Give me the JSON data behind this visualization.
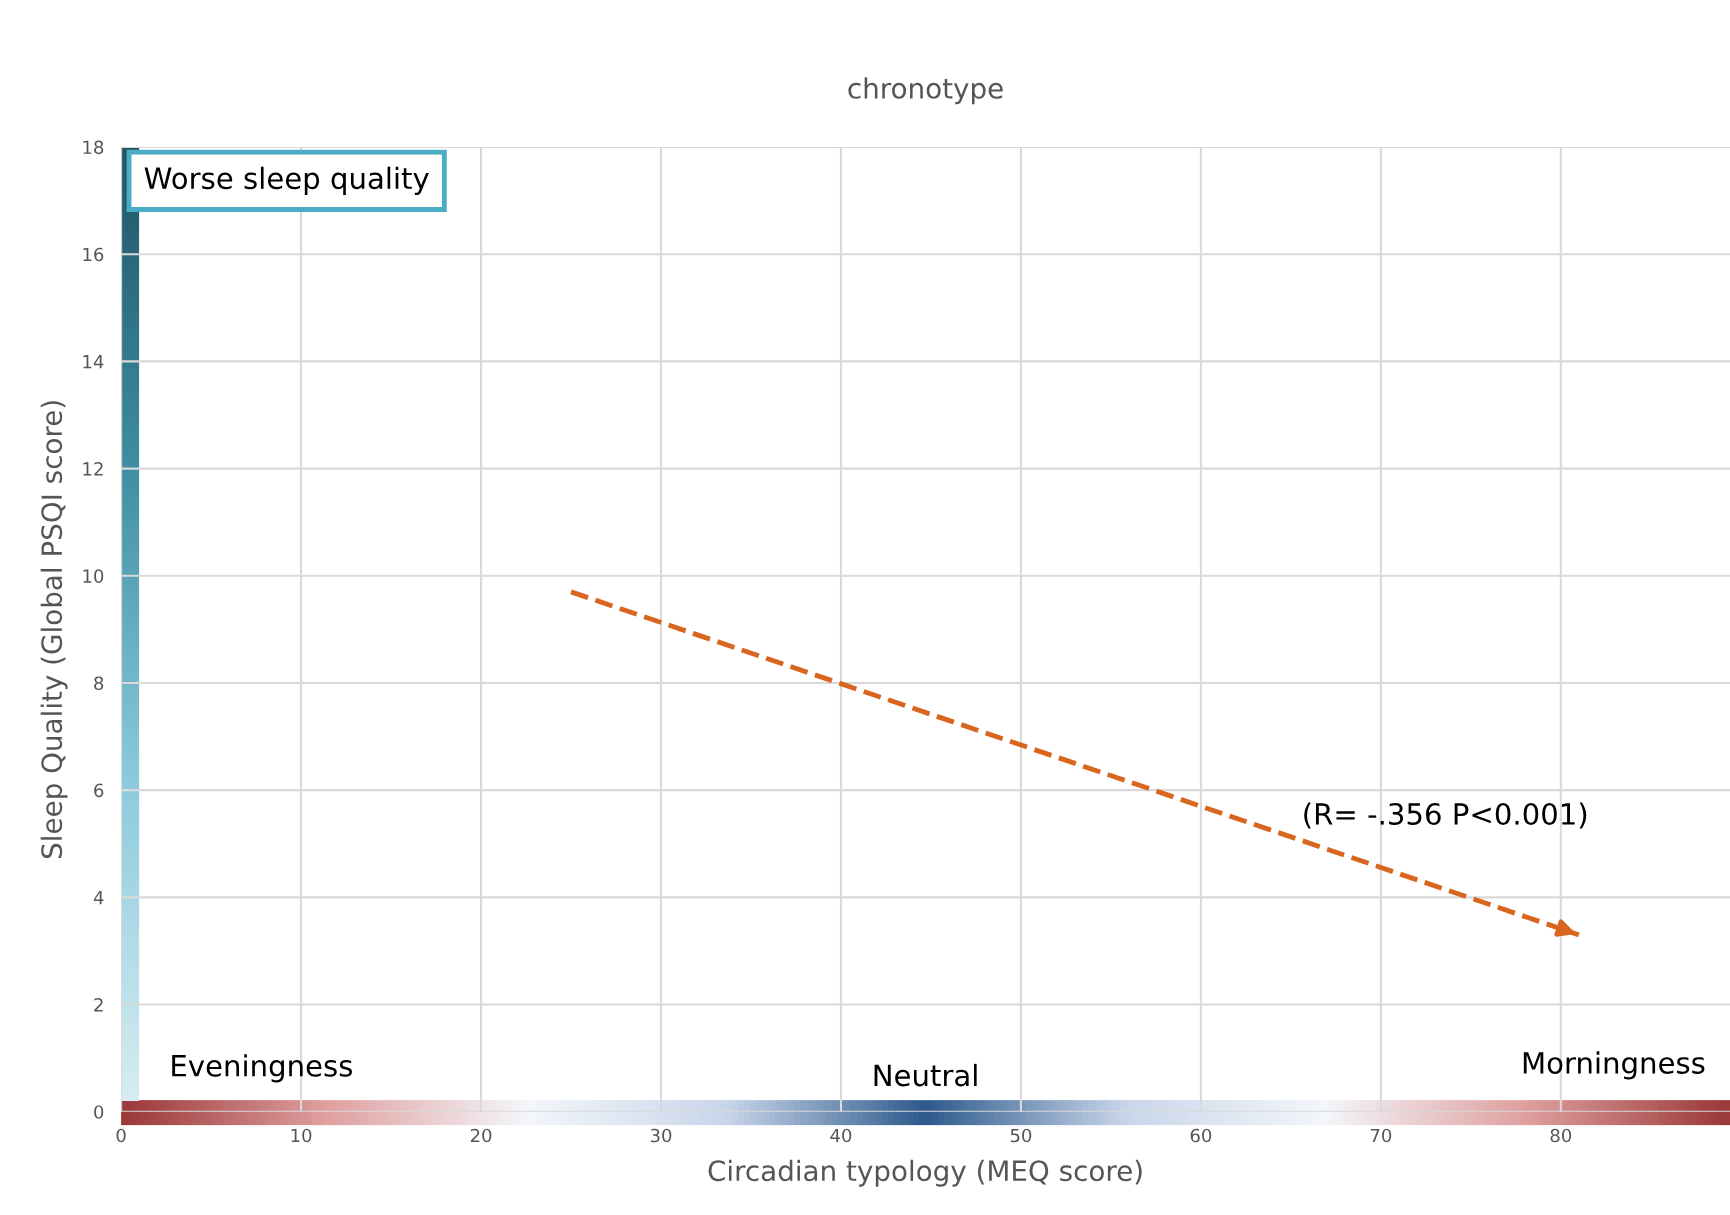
{
  "chart_data": {
    "type": "line",
    "title": "chronotype",
    "xlabel": "Circadian typology (MEQ score)",
    "ylabel": "Sleep Quality (Global PSQI score)",
    "series": [
      {
        "x": [
          25,
          81
        ],
        "values": [
          9.7,
          3.3
        ],
        "color": "#d9661f"
      }
    ],
    "line_style": "dashed",
    "marker": "none",
    "xlim": [
      0,
      89.4
    ],
    "xticks": [
      0,
      10,
      20,
      30,
      40,
      50,
      60,
      70,
      80
    ],
    "ylim": [
      0,
      18
    ],
    "yticks": [
      0,
      2,
      4,
      6,
      8,
      10,
      12,
      14,
      16,
      18
    ],
    "grid": true,
    "annotations": [
      "Worse sleep quality",
      "Eveningness",
      "Neutral",
      "Morningness",
      "(R= -.356 P<0.001)"
    ]
  }
}
